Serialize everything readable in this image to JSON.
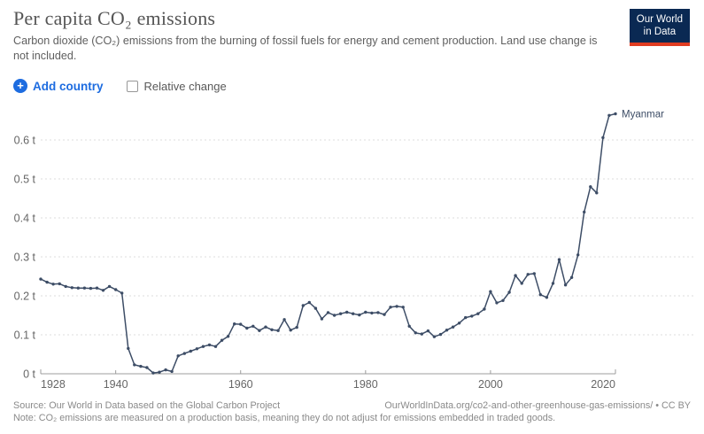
{
  "header": {
    "title": "Per capita CO₂ emissions",
    "subtitle": "Carbon dioxide (CO₂) emissions from the burning of fossil fuels for energy and cement production. Land use change is not included.",
    "logo": {
      "line1": "Our World",
      "line2": "in Data"
    }
  },
  "controls": {
    "add_country_label": "Add country",
    "relative_change_label": "Relative change"
  },
  "icons": {
    "plus_glyph": "+"
  },
  "chart_data": {
    "type": "line",
    "title": "Per capita CO₂ emissions",
    "xlabel": "",
    "ylabel": "",
    "grid": "horizontal-dashed",
    "legend_position": "end-of-line-label",
    "xlim": [
      1928,
      2020
    ],
    "ylim": [
      0,
      0.68
    ],
    "x_ticks": [
      1928,
      1940,
      1960,
      1980,
      2000,
      2020
    ],
    "y_tick_labels": [
      "0 t",
      "0.1 t",
      "0.2 t",
      "0.3 t",
      "0.4 t",
      "0.5 t",
      "0.6 t"
    ],
    "y_tick_values": [
      0,
      0.1,
      0.2,
      0.3,
      0.4,
      0.5,
      0.6
    ],
    "series": [
      {
        "name": "Myanmar",
        "color": "#3d4d66",
        "start_year": 1928,
        "end_year": 2020,
        "values": [
          0.243,
          0.235,
          0.23,
          0.231,
          0.224,
          0.221,
          0.22,
          0.22,
          0.219,
          0.22,
          0.214,
          0.224,
          0.216,
          0.207,
          0.065,
          0.023,
          0.019,
          0.016,
          0.002,
          0.004,
          0.01,
          0.006,
          0.046,
          0.052,
          0.058,
          0.064,
          0.07,
          0.074,
          0.07,
          0.086,
          0.096,
          0.128,
          0.127,
          0.117,
          0.122,
          0.111,
          0.12,
          0.113,
          0.111,
          0.139,
          0.112,
          0.119,
          0.175,
          0.183,
          0.168,
          0.141,
          0.157,
          0.15,
          0.154,
          0.158,
          0.154,
          0.151,
          0.158,
          0.156,
          0.157,
          0.152,
          0.171,
          0.173,
          0.171,
          0.122,
          0.105,
          0.102,
          0.11,
          0.095,
          0.101,
          0.112,
          0.12,
          0.13,
          0.144,
          0.148,
          0.154,
          0.166,
          0.211,
          0.182,
          0.188,
          0.209,
          0.252,
          0.232,
          0.255,
          0.257,
          0.203,
          0.196,
          0.232,
          0.293,
          0.228,
          0.247,
          0.305,
          0.415,
          0.48,
          0.464,
          0.606,
          0.663,
          0.667
        ]
      }
    ]
  },
  "footer": {
    "source": "Source: Our World in Data based on the Global Carbon Project",
    "url_credit": "OurWorldInData.org/co2-and-other-greenhouse-gas-emissions/ • CC BY",
    "note": "Note: CO₂ emissions are measured on a production basis, meaning they do not adjust for emissions embedded in traded goods."
  },
  "colors": {
    "accent_blue": "#1d6ce0",
    "series_line": "#3d4d66",
    "grid_line": "#dcdcdc",
    "axis_line": "#9c9c9c",
    "tick_text": "#666666",
    "logo_navy": "#0a2953",
    "logo_red": "#e03c21"
  }
}
